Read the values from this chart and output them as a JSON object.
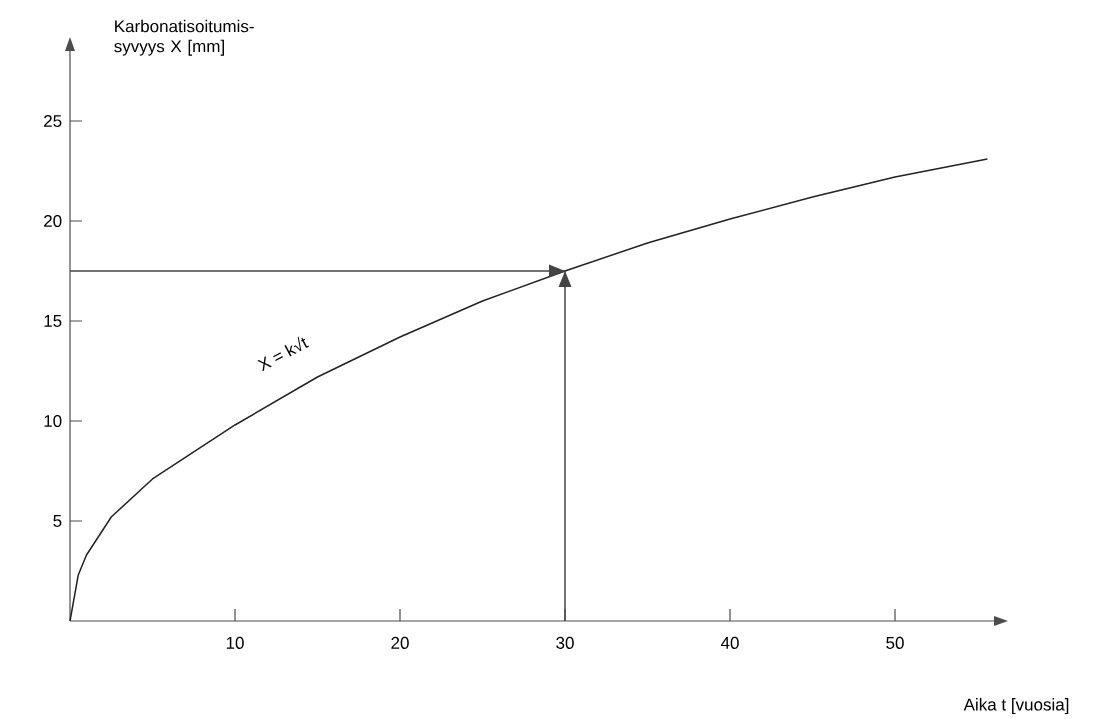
{
  "chart_data": {
    "type": "line",
    "xlabel": "Aika t [vuosia]",
    "ylabel": "Karbonatisoitumis-syvyys X [mm]",
    "xlim": [
      0,
      56
    ],
    "ylim": [
      0,
      28.5
    ],
    "xticks": [
      10,
      20,
      30,
      40,
      50
    ],
    "yticks": [
      5,
      10,
      15,
      20,
      25
    ],
    "series": [
      {
        "color": "#222222",
        "x": [
          0,
          0.5,
          1,
          2.5,
          5,
          10,
          15,
          20,
          25,
          30,
          35,
          40,
          45,
          50,
          55.6
        ],
        "values": [
          0,
          2.3,
          3.3,
          5.2,
          7.1,
          9.8,
          12.2,
          14.2,
          16,
          17.5,
          18.9,
          20.1,
          21.2,
          22.2,
          23.1
        ]
      }
    ],
    "ref_lines": [
      {
        "axis": "y",
        "value": 17.5,
        "color": "#444444"
      },
      {
        "axis": "x",
        "value": 30,
        "color": "#444444"
      }
    ],
    "annotations": [
      "X = k√t"
    ]
  }
}
